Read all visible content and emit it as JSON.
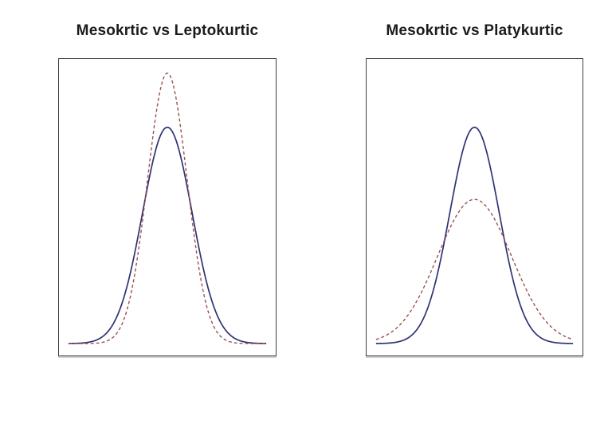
{
  "figure": {
    "background": "#ffffff",
    "panel_border_color": "#3d3d3d",
    "mesokurtic_color": "#2d3272",
    "comparison_color": "#9c5050"
  },
  "chart_data": [
    {
      "type": "line",
      "title": "Mesokrtic vs Leptokurtic",
      "xlabel": "",
      "ylabel": "",
      "x_range": [
        -4,
        4
      ],
      "ylim": [
        0,
        0.5
      ],
      "grid": false,
      "legend_position": "none",
      "axes_shown": false,
      "sample_x": [
        -4,
        -3.5,
        -3,
        -2.5,
        -2,
        -1.5,
        -1,
        -0.5,
        0,
        0.5,
        1,
        1.5,
        2,
        2.5,
        3,
        3.5,
        4
      ],
      "series": [
        {
          "id": "mesokurtic",
          "name": "Mesokurtic",
          "distribution": "gaussian",
          "mean": 0,
          "sd": 1,
          "peak_density": 0.3989,
          "line_style": "solid",
          "color": "#2d3272",
          "density_values": [
            0.0001,
            0.0009,
            0.0044,
            0.0175,
            0.054,
            0.1295,
            0.242,
            0.3521,
            0.3989,
            0.3521,
            0.242,
            0.1295,
            0.054,
            0.0175,
            0.0044,
            0.0009,
            0.0001
          ]
        },
        {
          "id": "leptokurtic",
          "name": "Leptokurtic",
          "distribution": "gaussian",
          "mean": 0,
          "sd": 0.8,
          "peak_density": 0.4987,
          "line_style": "dashed",
          "color": "#9c5050",
          "density_values": [
            0,
            3e-05,
            0.0004,
            0.0038,
            0.0219,
            0.086,
            0.2283,
            0.4102,
            0.4987,
            0.4102,
            0.2283,
            0.086,
            0.0219,
            0.0038,
            0.0004,
            3e-05,
            0
          ]
        }
      ]
    },
    {
      "type": "line",
      "title": "Mesokrtic vs Platykurtic",
      "xlabel": "",
      "ylabel": "",
      "x_range": [
        -4,
        4
      ],
      "ylim": [
        0,
        0.5
      ],
      "grid": false,
      "legend_position": "none",
      "axes_shown": false,
      "sample_x": [
        -4,
        -3.5,
        -3,
        -2.5,
        -2,
        -1.5,
        -1,
        -0.5,
        0,
        0.5,
        1,
        1.5,
        2,
        2.5,
        3,
        3.5,
        4
      ],
      "series": [
        {
          "id": "mesokurtic",
          "name": "Mesokurtic",
          "distribution": "gaussian",
          "mean": 0,
          "sd": 1,
          "peak_density": 0.3989,
          "line_style": "solid",
          "color": "#2d3272",
          "density_values": [
            0.0001,
            0.0009,
            0.0044,
            0.0175,
            0.054,
            0.1295,
            0.242,
            0.3521,
            0.3989,
            0.3521,
            0.242,
            0.1295,
            0.054,
            0.0175,
            0.0044,
            0.0009,
            0.0001
          ]
        },
        {
          "id": "platykurtic",
          "name": "Platykurtic",
          "distribution": "gaussian",
          "mean": 0,
          "sd": 1.5,
          "peak_density": 0.266,
          "line_style": "dashed",
          "color": "#9c5050",
          "density_values": [
            0.0076,
            0.0175,
            0.036,
            0.0663,
            0.1093,
            0.1613,
            0.213,
            0.2516,
            0.266,
            0.2516,
            0.213,
            0.1613,
            0.1093,
            0.0663,
            0.036,
            0.0175,
            0.0076
          ]
        }
      ]
    }
  ]
}
